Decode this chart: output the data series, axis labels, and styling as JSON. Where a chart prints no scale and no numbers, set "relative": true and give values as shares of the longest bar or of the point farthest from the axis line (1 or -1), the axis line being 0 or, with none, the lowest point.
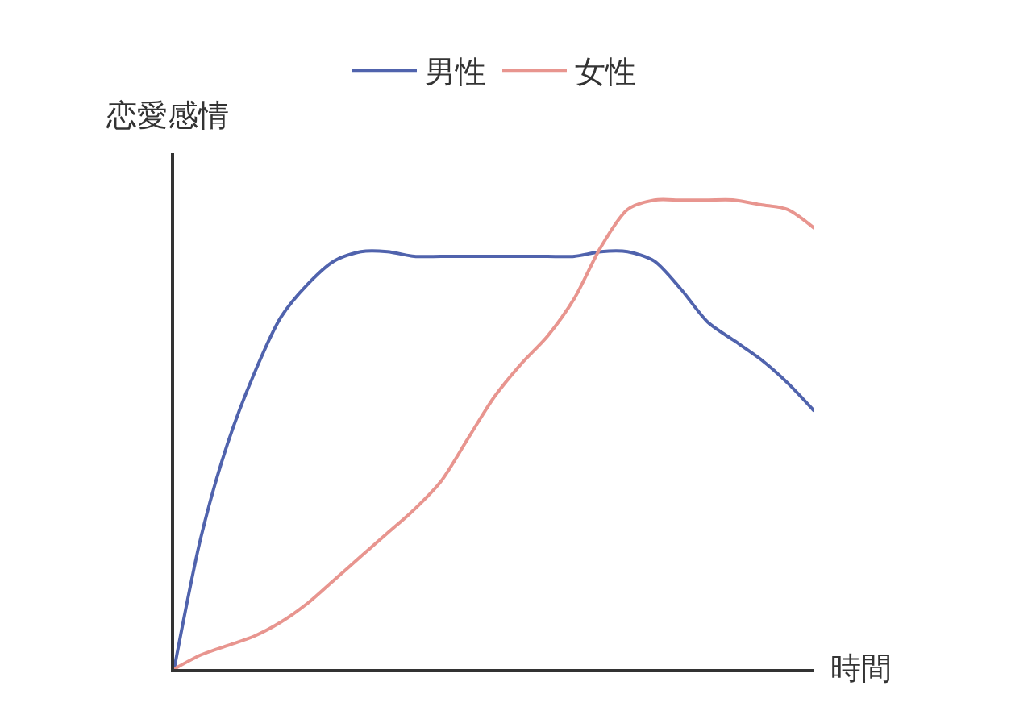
{
  "chart_data": {
    "type": "line",
    "relative": true,
    "xlabel": "時間",
    "ylabel": "恋愛感情",
    "categories": [
      null,
      null,
      null,
      null,
      null,
      null,
      null,
      null,
      null,
      null,
      null,
      null,
      null,
      null,
      null,
      null,
      null,
      null,
      null,
      null,
      null,
      null,
      null,
      null,
      null
    ],
    "series": [
      {
        "name": "男性",
        "color": "#5063ad",
        "values": [
          0,
          0.28,
          0.48,
          0.63,
          0.75,
          0.82,
          0.87,
          0.89,
          0.89,
          0.88,
          0.88,
          0.88,
          0.88,
          0.88,
          0.88,
          0.88,
          0.89,
          0.89,
          0.87,
          0.81,
          0.74,
          0.7,
          0.66,
          0.61,
          0.55
        ]
      },
      {
        "name": "女性",
        "color": "#e8958f",
        "values": [
          0,
          0.03,
          0.05,
          0.07,
          0.1,
          0.14,
          0.19,
          0.24,
          0.29,
          0.34,
          0.4,
          0.49,
          0.58,
          0.65,
          0.71,
          0.79,
          0.9,
          0.98,
          1.0,
          1.0,
          1.0,
          1.0,
          0.99,
          0.98,
          0.94
        ]
      }
    ],
    "legend": "top",
    "line_style": "solid"
  }
}
